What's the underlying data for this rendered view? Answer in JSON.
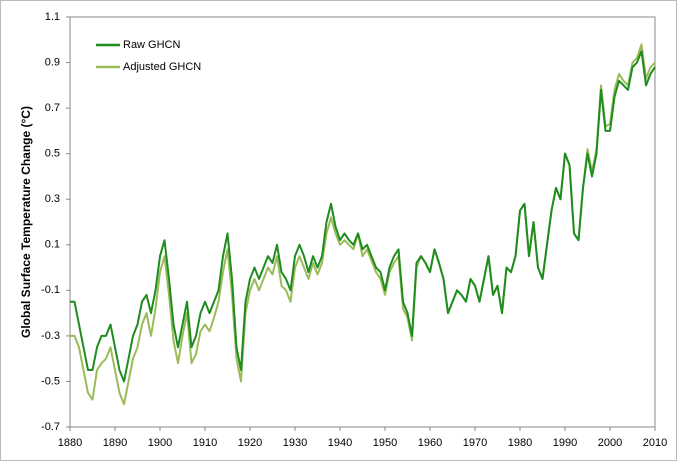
{
  "chart_data": {
    "type": "line",
    "y_label": "Global Surface Temperature Change (°C)",
    "x": [
      1880,
      1881,
      1882,
      1883,
      1884,
      1885,
      1886,
      1887,
      1888,
      1889,
      1890,
      1891,
      1892,
      1893,
      1894,
      1895,
      1896,
      1897,
      1898,
      1899,
      1900,
      1901,
      1902,
      1903,
      1904,
      1905,
      1906,
      1907,
      1908,
      1909,
      1910,
      1911,
      1912,
      1913,
      1914,
      1915,
      1916,
      1917,
      1918,
      1919,
      1920,
      1921,
      1922,
      1923,
      1924,
      1925,
      1926,
      1927,
      1928,
      1929,
      1930,
      1931,
      1932,
      1933,
      1934,
      1935,
      1936,
      1937,
      1938,
      1939,
      1940,
      1941,
      1942,
      1943,
      1944,
      1945,
      1946,
      1947,
      1948,
      1949,
      1950,
      1951,
      1952,
      1953,
      1954,
      1955,
      1956,
      1957,
      1958,
      1959,
      1960,
      1961,
      1962,
      1963,
      1964,
      1965,
      1966,
      1967,
      1968,
      1969,
      1970,
      1971,
      1972,
      1973,
      1974,
      1975,
      1976,
      1977,
      1978,
      1979,
      1980,
      1981,
      1982,
      1983,
      1984,
      1985,
      1986,
      1987,
      1988,
      1989,
      1990,
      1991,
      1992,
      1993,
      1994,
      1995,
      1996,
      1997,
      1998,
      1999,
      2000,
      2001,
      2002,
      2003,
      2004,
      2005,
      2006,
      2007,
      2008,
      2009,
      2010
    ],
    "series": [
      {
        "name": "Raw GHCN",
        "color": "#1e8c1e",
        "values": [
          -0.15,
          -0.15,
          -0.25,
          -0.35,
          -0.45,
          -0.45,
          -0.35,
          -0.3,
          -0.3,
          -0.25,
          -0.35,
          -0.45,
          -0.5,
          -0.4,
          -0.3,
          -0.25,
          -0.15,
          -0.12,
          -0.2,
          -0.1,
          0.05,
          0.12,
          -0.05,
          -0.25,
          -0.35,
          -0.25,
          -0.15,
          -0.35,
          -0.3,
          -0.2,
          -0.15,
          -0.2,
          -0.15,
          -0.1,
          0.05,
          0.15,
          -0.05,
          -0.35,
          -0.45,
          -0.15,
          -0.05,
          0,
          -0.05,
          0,
          0.05,
          0.02,
          0.1,
          -0.02,
          -0.05,
          -0.1,
          0.05,
          0.1,
          0.05,
          -0.02,
          0.05,
          0,
          0.05,
          0.2,
          0.28,
          0.18,
          0.12,
          0.15,
          0.12,
          0.1,
          0.15,
          0.08,
          0.1,
          0.05,
          0,
          -0.02,
          -0.1,
          0,
          0.05,
          0.08,
          -0.15,
          -0.2,
          -0.3,
          0.02,
          0.05,
          0.02,
          -0.02,
          0.08,
          0.02,
          -0.05,
          -0.2,
          -0.15,
          -0.1,
          -0.12,
          -0.15,
          -0.05,
          -0.08,
          -0.15,
          -0.05,
          0.05,
          -0.12,
          -0.08,
          -0.2,
          0,
          -0.02,
          0.05,
          0.25,
          0.28,
          0.05,
          0.2,
          0,
          -0.05,
          0.1,
          0.25,
          0.35,
          0.3,
          0.5,
          0.45,
          0.15,
          0.12,
          0.35,
          0.5,
          0.4,
          0.5,
          0.78,
          0.6,
          0.6,
          0.75,
          0.82,
          0.8,
          0.78,
          0.88,
          0.9,
          0.95,
          0.8,
          0.85,
          0.88
        ]
      },
      {
        "name": "Adjusted GHCN",
        "color": "#9bbb59",
        "values": [
          -0.3,
          -0.3,
          -0.35,
          -0.45,
          -0.55,
          -0.58,
          -0.45,
          -0.42,
          -0.4,
          -0.35,
          -0.45,
          -0.55,
          -0.6,
          -0.5,
          -0.4,
          -0.35,
          -0.25,
          -0.2,
          -0.3,
          -0.18,
          -0.02,
          0.05,
          -0.12,
          -0.32,
          -0.42,
          -0.3,
          -0.2,
          -0.42,
          -0.38,
          -0.28,
          -0.25,
          -0.28,
          -0.22,
          -0.15,
          -0.02,
          0.08,
          -0.12,
          -0.4,
          -0.5,
          -0.2,
          -0.1,
          -0.05,
          -0.1,
          -0.05,
          0,
          -0.03,
          0.05,
          -0.08,
          -0.1,
          -0.15,
          0,
          0.05,
          0,
          -0.05,
          0.02,
          -0.03,
          0.02,
          0.15,
          0.22,
          0.15,
          0.1,
          0.12,
          0.1,
          0.08,
          0.15,
          0.05,
          0.08,
          0.03,
          -0.02,
          -0.05,
          -0.12,
          -0.02,
          0.02,
          0.05,
          -0.18,
          -0.22,
          -0.32,
          0,
          0.05,
          0.02,
          -0.02,
          0.08,
          0.02,
          -0.05,
          -0.2,
          -0.15,
          -0.1,
          -0.12,
          -0.15,
          -0.05,
          -0.08,
          -0.15,
          -0.05,
          0.05,
          -0.12,
          -0.08,
          -0.2,
          0,
          -0.02,
          0.05,
          0.25,
          0.28,
          0.05,
          0.2,
          0,
          -0.05,
          0.1,
          0.25,
          0.35,
          0.3,
          0.5,
          0.45,
          0.15,
          0.12,
          0.35,
          0.52,
          0.42,
          0.52,
          0.8,
          0.62,
          0.63,
          0.78,
          0.85,
          0.82,
          0.8,
          0.9,
          0.92,
          0.98,
          0.83,
          0.88,
          0.9
        ]
      }
    ],
    "xlim": [
      1880,
      2010
    ],
    "xticks": [
      1880,
      1890,
      1900,
      1910,
      1920,
      1930,
      1940,
      1950,
      1960,
      1970,
      1980,
      1990,
      2000,
      2010
    ],
    "ylim": [
      -0.7,
      1.1
    ],
    "yticks": [
      -0.7,
      -0.5,
      -0.3,
      -0.1,
      0.1,
      0.3,
      0.5,
      0.7,
      0.9,
      1.1
    ],
    "legend": "top-left"
  }
}
